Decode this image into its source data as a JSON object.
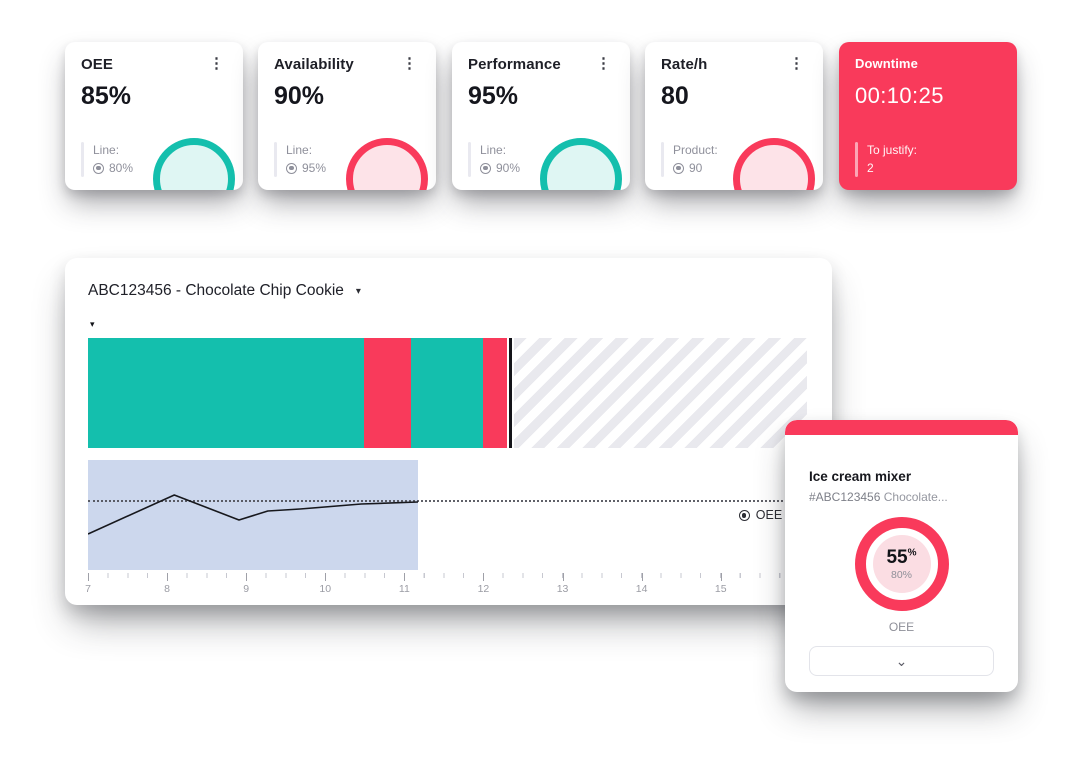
{
  "colors": {
    "teal": "#14BFAD",
    "red": "#F93A5B",
    "teal_light": "#DFF6F3",
    "red_light": "#FDE3E8",
    "lavender": "#CCD7ED"
  },
  "kpi_cards": [
    {
      "title": "OEE",
      "value": "85%",
      "sub_label": "Line:",
      "sub_value": "80%",
      "accent": "teal",
      "menu_icon": "⋮"
    },
    {
      "title": "Availability",
      "value": "90%",
      "sub_label": "Line:",
      "sub_value": "95%",
      "accent": "red",
      "menu_icon": "⋮"
    },
    {
      "title": "Performance",
      "value": "95%",
      "sub_label": "Line:",
      "sub_value": "90%",
      "accent": "teal",
      "menu_icon": "⋮"
    },
    {
      "title": "Rate/h",
      "value": "80",
      "sub_label": "Product:",
      "sub_value": "90",
      "accent": "red",
      "menu_icon": "⋮"
    }
  ],
  "downtime_card": {
    "title": "Downtime",
    "value": "00:10:25",
    "sub_label": "To justify:",
    "sub_value": "2"
  },
  "main_chart": {
    "title": "ABC123456 - Chocolate Chip Cookie",
    "dropdown_icon": "▾",
    "filter_icon": "▾",
    "legend_label": "OEE &"
  },
  "chart_data": {
    "type": "gantt+line",
    "title": "ABC123456 - Chocolate Chip Cookie",
    "x_ticks": [
      "7",
      "8",
      "9",
      "10",
      "11",
      "12",
      "13",
      "14",
      "15"
    ],
    "x_tick_spacing_percent": 11,
    "status_segments": [
      {
        "state": "running",
        "from": 0,
        "to": 38.4
      },
      {
        "state": "stopped",
        "from": 38.4,
        "to": 44.9
      },
      {
        "state": "running",
        "from": 44.9,
        "to": 54.9
      },
      {
        "state": "stopped",
        "from": 54.9,
        "to": 58.3
      },
      {
        "state": "future",
        "from": 59.3,
        "to": 100
      }
    ],
    "now_line_percent": 58.5,
    "oee_band": {
      "filled_to_percent": 45.9,
      "target_line_percent_from_top": 36.5,
      "line_points": [
        [
          0,
          74
        ],
        [
          12,
          35
        ],
        [
          21,
          60
        ],
        [
          25,
          51
        ],
        [
          29.5,
          49
        ],
        [
          38,
          44
        ],
        [
          45.9,
          42
        ]
      ]
    }
  },
  "machine_card": {
    "title": "Ice cream mixer",
    "subtitle_code": "#ABC123456",
    "subtitle_rest": " Chocolate...",
    "value": "55",
    "value_unit": "%",
    "target": "80%",
    "metric_label": "OEE",
    "expand_icon": "⌄"
  }
}
